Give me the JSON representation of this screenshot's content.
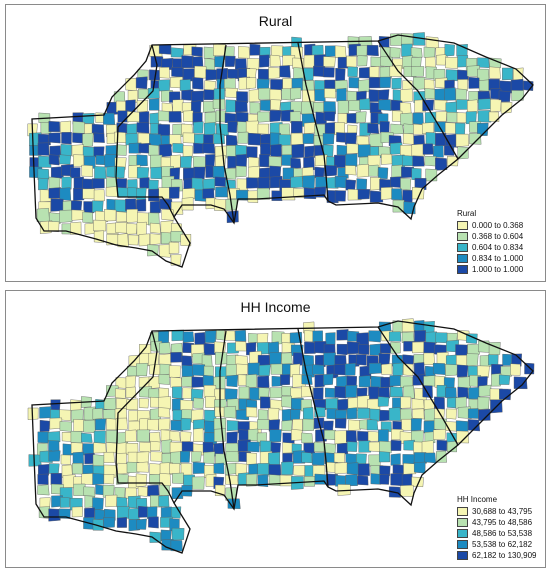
{
  "colors": [
    "#f5f5b3",
    "#b8e2b1",
    "#39b5c9",
    "#1d8bc1",
    "#1b49a6"
  ],
  "county_border": "#5f5f5f",
  "state_border": "#111111",
  "maps": [
    {
      "title": "Rural",
      "legend_title": "Rural",
      "classes": [
        "0.000 to 0.368",
        "0.368 to 0.604",
        "0.604 to 0.834",
        "0.834 to 1.000",
        "1.000 to 1.000"
      ]
    },
    {
      "title": "HH Income",
      "legend_title": "HH Income",
      "classes": [
        "30,688 to 43,795",
        "43,795 to 48,586",
        "48,586 to 53,538",
        "53,538 to 62,182",
        "62,182 to 130,909"
      ]
    }
  ]
}
